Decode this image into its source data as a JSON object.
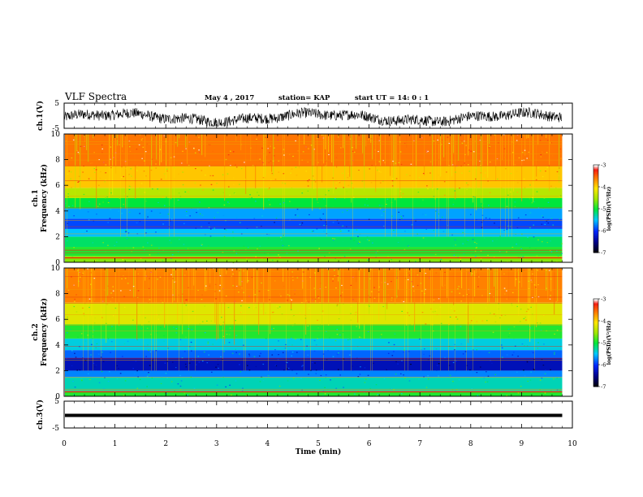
{
  "header": {
    "title": "VLF Spectra",
    "date": "May 4 , 2017",
    "station": "station= KAP",
    "start_ut": "start  UT  =   14: 0  : 1"
  },
  "chart_data": [
    {
      "type": "line",
      "ylabel": "ch.1(V)",
      "ylim": [
        -5,
        5
      ],
      "yticks": [
        "5",
        "-5"
      ],
      "description_of_signal": "noisy waveform fluctuating roughly between -3 and 2 V"
    },
    {
      "type": "heatmap",
      "ylabel": "ch.1\nFrequency (kHz)",
      "ylabel_lines": [
        "ch.1",
        "Frequency  (kHz)"
      ],
      "ylim": [
        0,
        10
      ],
      "yticks": [
        "0",
        "2",
        "4",
        "6",
        "8",
        "10"
      ],
      "xlim": [
        0,
        9.8
      ],
      "bands": [
        {
          "from": 0.0,
          "to": 0.5,
          "log_psd": -4.6
        },
        {
          "from": 0.5,
          "to": 1.2,
          "log_psd": -4.9
        },
        {
          "from": 1.2,
          "to": 2.0,
          "log_psd": -5.1
        },
        {
          "from": 2.0,
          "to": 2.6,
          "log_psd": -5.5
        },
        {
          "from": 2.6,
          "to": 3.4,
          "log_psd": -5.9
        },
        {
          "from": 3.4,
          "to": 4.2,
          "log_psd": -5.6
        },
        {
          "from": 4.2,
          "to": 5.0,
          "log_psd": -5.0
        },
        {
          "from": 5.0,
          "to": 5.8,
          "log_psd": -4.4
        },
        {
          "from": 5.8,
          "to": 7.5,
          "log_psd": -3.9
        },
        {
          "from": 7.5,
          "to": 10.0,
          "log_psd": -3.55
        }
      ],
      "colorbar": {
        "label": "log(PSD)(V²/Hz)",
        "range": [
          -7,
          -3
        ],
        "ticks": [
          "-3",
          "-4",
          "-5",
          "-6",
          "-7"
        ]
      }
    },
    {
      "type": "heatmap",
      "ylabel": "ch.2\nFrequency (kHz)",
      "ylabel_lines": [
        "ch.2",
        "Frequency  (kHz)"
      ],
      "ylim": [
        0,
        10
      ],
      "yticks": [
        "0",
        "2",
        "4",
        "6",
        "8",
        "10"
      ],
      "xlim": [
        0,
        9.8
      ],
      "bands": [
        {
          "from": 0.0,
          "to": 0.4,
          "log_psd": -4.9
        },
        {
          "from": 0.4,
          "to": 1.5,
          "log_psd": -5.3
        },
        {
          "from": 1.5,
          "to": 2.0,
          "log_psd": -5.7
        },
        {
          "from": 2.0,
          "to": 3.0,
          "log_psd": -6.3
        },
        {
          "from": 3.0,
          "to": 3.6,
          "log_psd": -5.8
        },
        {
          "from": 3.6,
          "to": 4.5,
          "log_psd": -5.4
        },
        {
          "from": 4.5,
          "to": 5.6,
          "log_psd": -4.9
        },
        {
          "from": 5.6,
          "to": 7.3,
          "log_psd": -4.2
        },
        {
          "from": 7.3,
          "to": 10.0,
          "log_psd": -3.6
        }
      ],
      "colorbar": {
        "label": "log(PSD)(V²/Hz)",
        "range": [
          -7,
          -3
        ],
        "ticks": [
          "-3",
          "-4",
          "-5",
          "-6",
          "-7"
        ]
      }
    },
    {
      "type": "line",
      "ylabel": "ch.3(V)",
      "ylim": [
        -5,
        5
      ],
      "yticks": [
        "5",
        "-5"
      ],
      "xlabel": "Time  (min)",
      "xlim": [
        0,
        10
      ],
      "xticks": [
        "0",
        "1",
        "2",
        "3",
        "4",
        "5",
        "6",
        "7",
        "8",
        "9",
        "10"
      ],
      "constant_level": 0,
      "x_end": 9.8
    }
  ]
}
